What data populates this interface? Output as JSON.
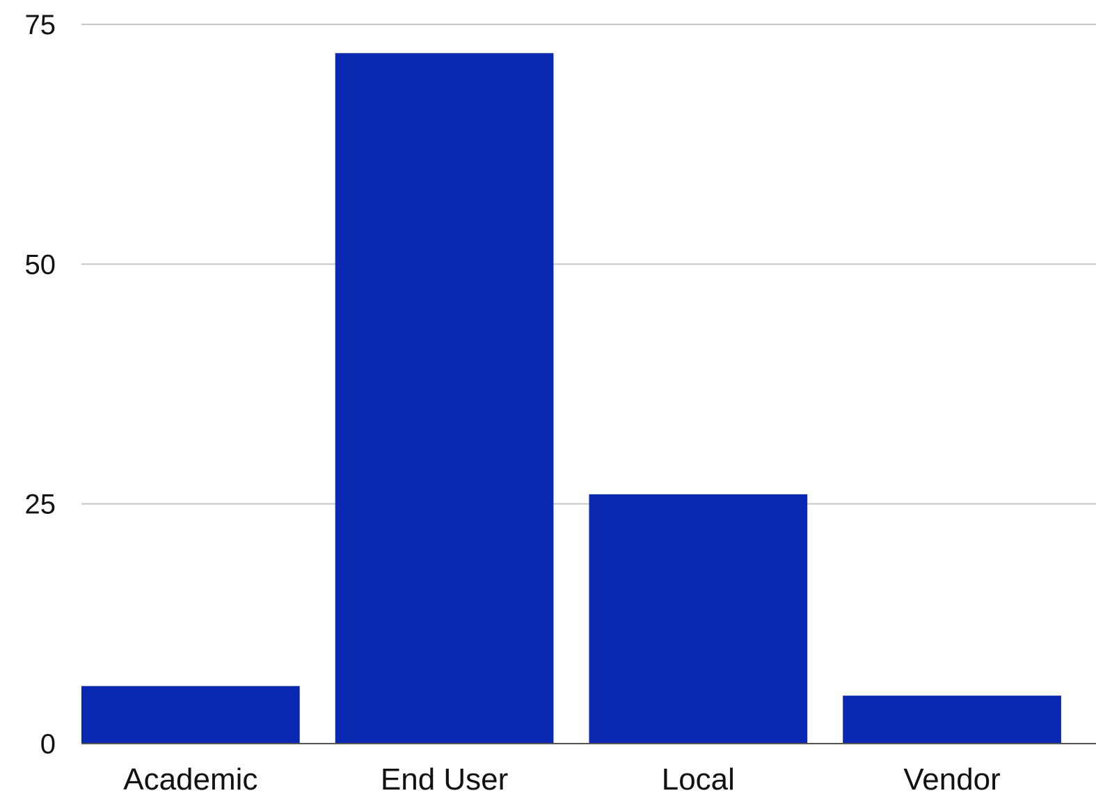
{
  "chart_data": {
    "type": "bar",
    "categories": [
      "Academic",
      "End User",
      "Local",
      "Vendor"
    ],
    "values": [
      6,
      72,
      26,
      5
    ],
    "ylim": [
      0,
      75
    ],
    "yticks": [
      0,
      25,
      50,
      75
    ],
    "ytick_labels": [
      "0",
      "25",
      "50",
      "75"
    ],
    "grid": true,
    "legend": "none",
    "colors": {
      "bar": "#0a28b0",
      "grid": "#c8c8c8",
      "axis": "#555555",
      "text": "#111111"
    }
  }
}
